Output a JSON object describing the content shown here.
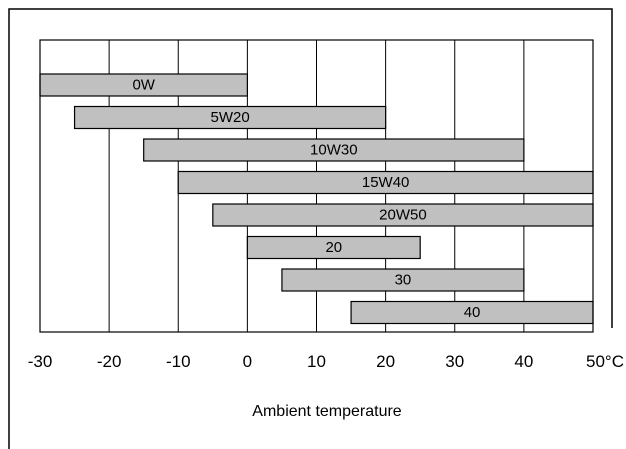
{
  "chart_data": {
    "type": "bar",
    "orientation": "horizontal-range",
    "xlabel": "Ambient temperature",
    "unit": "°C",
    "xlim": [
      -30,
      50
    ],
    "xticks": [
      -30,
      -20,
      -10,
      0,
      10,
      20,
      30,
      40,
      50
    ],
    "tick_labels": [
      "-30",
      "-20",
      "-10",
      "0",
      "10",
      "20",
      "30",
      "40",
      "50°C"
    ],
    "grid": "vertical",
    "categories": [
      "0W",
      "5W20",
      "10W30",
      "15W40",
      "20W50",
      "20",
      "30",
      "40"
    ],
    "ranges": [
      {
        "label": "0W",
        "start": -30,
        "end": 0
      },
      {
        "label": "5W20",
        "start": -25,
        "end": 20
      },
      {
        "label": "10W30",
        "start": -15,
        "end": 40
      },
      {
        "label": "15W40",
        "start": -10,
        "end": 50
      },
      {
        "label": "20W50",
        "start": -5,
        "end": 50
      },
      {
        "label": "20",
        "start": 0,
        "end": 25
      },
      {
        "label": "30",
        "start": 5,
        "end": 40
      },
      {
        "label": "40",
        "start": 15,
        "end": 50
      }
    ],
    "colors": {
      "bar_fill": "#c0c0c0",
      "stroke": "#000000"
    }
  }
}
